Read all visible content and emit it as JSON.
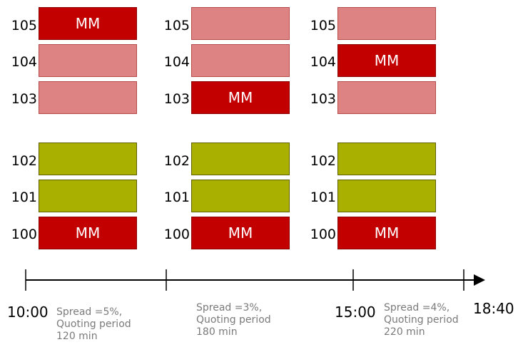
{
  "columns": [
    {
      "rows": [
        {
          "level": "105",
          "kind": "mm",
          "label": "MM"
        },
        {
          "level": "104",
          "kind": "ask",
          "label": ""
        },
        {
          "level": "103",
          "kind": "ask",
          "label": ""
        },
        {
          "level": "102",
          "kind": "bid",
          "label": ""
        },
        {
          "level": "101",
          "kind": "bid",
          "label": ""
        },
        {
          "level": "100",
          "kind": "mm",
          "label": "MM"
        }
      ]
    },
    {
      "rows": [
        {
          "level": "105",
          "kind": "ask",
          "label": ""
        },
        {
          "level": "104",
          "kind": "ask",
          "label": ""
        },
        {
          "level": "103",
          "kind": "mm",
          "label": "MM"
        },
        {
          "level": "102",
          "kind": "bid",
          "label": ""
        },
        {
          "level": "101",
          "kind": "bid",
          "label": ""
        },
        {
          "level": "100",
          "kind": "mm",
          "label": "MM"
        }
      ]
    },
    {
      "rows": [
        {
          "level": "105",
          "kind": "ask",
          "label": ""
        },
        {
          "level": "104",
          "kind": "mm",
          "label": "MM"
        },
        {
          "level": "103",
          "kind": "ask",
          "label": ""
        },
        {
          "level": "102",
          "kind": "bid",
          "label": ""
        },
        {
          "level": "101",
          "kind": "bid",
          "label": ""
        },
        {
          "level": "100",
          "kind": "mm",
          "label": "MM"
        }
      ]
    }
  ],
  "timeline": {
    "start": "10:00",
    "mid": "15:00",
    "end": "18:40"
  },
  "notes": [
    {
      "line1": "Spread =5%,",
      "line2": "Quoting period",
      "line3": "120 min"
    },
    {
      "line1": "Spread =3%,",
      "line2": "Quoting period",
      "line3": "180 min"
    },
    {
      "line1": "Spread =4%,",
      "line2": "Quoting period",
      "line3": "220 min"
    }
  ],
  "colors": {
    "ask": "#de8383",
    "bid": "#a9b000",
    "mm": "#c30000",
    "note_text": "#7a7a7a"
  }
}
